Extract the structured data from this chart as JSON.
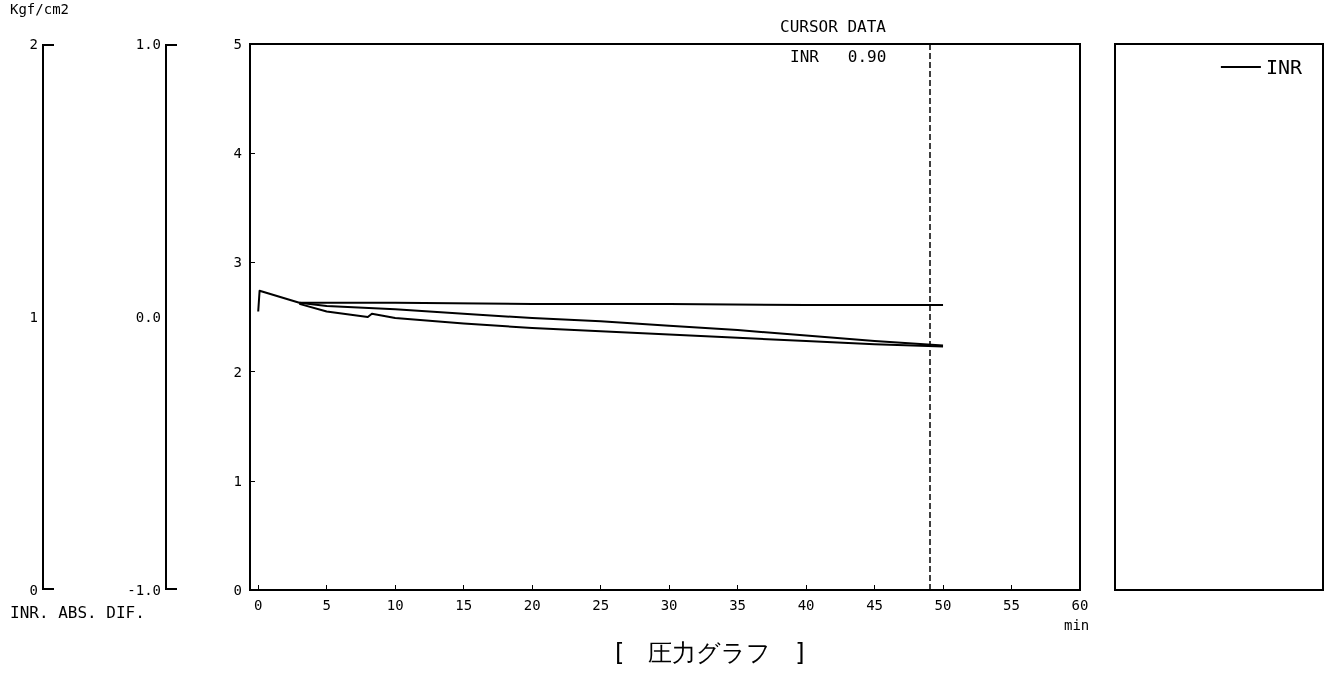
{
  "chart_data": [
    {
      "type": "other",
      "annotations": [
        "2",
        "1",
        "0"
      ]
    },
    {
      "type": "other",
      "annotations": [
        "1.0",
        "0.0",
        "-1.0"
      ]
    },
    {
      "type": "line",
      "title": "[　圧力グラフ　]",
      "ylabel": "Kgf/cm2",
      "xlabel": "min",
      "annotations": [
        "CURSOR DATA",
        "INR   0.90",
        "INR. ABS. DIF."
      ],
      "series": [
        {
          "name": "INR",
          "color": "#000000",
          "x": [
            0,
            0.1,
            3,
            10,
            20,
            30,
            40,
            50
          ],
          "values": [
            2.55,
            2.74,
            2.63,
            2.63,
            2.62,
            2.62,
            2.61,
            2.61
          ]
        },
        {
          "color": "#000000",
          "x": [
            3,
            5,
            10,
            15,
            20,
            25,
            30,
            35,
            40,
            45,
            50
          ],
          "values": [
            2.63,
            2.6,
            2.57,
            2.53,
            2.49,
            2.46,
            2.42,
            2.38,
            2.33,
            2.28,
            2.24
          ]
        },
        {
          "color": "#000000",
          "x": [
            3,
            5,
            8,
            8.3,
            10,
            15,
            20,
            25,
            30,
            35,
            40,
            45,
            50
          ],
          "values": [
            2.62,
            2.55,
            2.5,
            2.53,
            2.49,
            2.44,
            2.4,
            2.37,
            2.34,
            2.31,
            2.28,
            2.25,
            2.23
          ]
        }
      ],
      "xlim": [
        -0.6,
        60
      ],
      "xticks": [
        0,
        5,
        10,
        15,
        20,
        25,
        30,
        35,
        40,
        45,
        50,
        55,
        60
      ],
      "ylim": [
        0,
        5
      ],
      "yticks": [
        0,
        1,
        2,
        3,
        4,
        5
      ],
      "ref_lines": [
        {
          "axis": "x",
          "value": 49,
          "line_style": "dashed",
          "color": "#000000"
        }
      ],
      "grid": false,
      "legend": "right",
      "marker": "none",
      "line_style": "solid"
    }
  ]
}
